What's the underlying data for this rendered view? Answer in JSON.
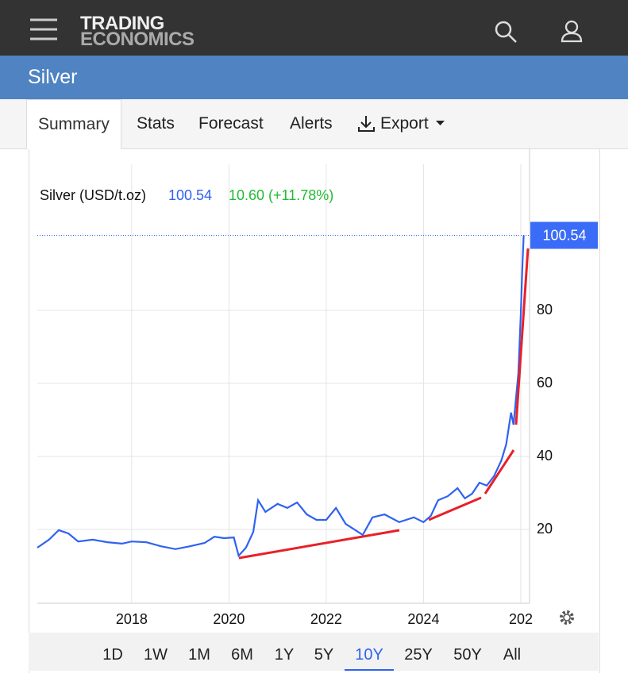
{
  "header": {
    "logo_line1": "TRADING",
    "logo_line2": "ECONOMICS"
  },
  "page_title": "Silver",
  "tabs": [
    "Summary",
    "Stats",
    "Forecast",
    "Alerts",
    "Export"
  ],
  "active_tab": 0,
  "chart_data": {
    "type": "line",
    "series_name": "Silver (USD/t.oz)",
    "last_price": 100.54,
    "change": "10.60 (+11.78%)",
    "color": "#2f62f0",
    "x": [
      2016.06,
      2016.3,
      2016.5,
      2016.7,
      2016.9,
      2017.2,
      2017.5,
      2017.8,
      2018.0,
      2018.3,
      2018.6,
      2018.9,
      2019.2,
      2019.5,
      2019.7,
      2019.9,
      2020.1,
      2020.2,
      2020.35,
      2020.5,
      2020.6,
      2020.75,
      2021.0,
      2021.2,
      2021.4,
      2021.6,
      2021.8,
      2022.0,
      2022.2,
      2022.4,
      2022.6,
      2022.75,
      2022.95,
      2023.2,
      2023.5,
      2023.8,
      2024.0,
      2024.15,
      2024.3,
      2024.5,
      2024.7,
      2024.85,
      2025.0,
      2025.15,
      2025.3,
      2025.45,
      2025.6,
      2025.7,
      2025.8,
      2025.85,
      2025.95,
      2026.0,
      2026.03,
      2026.06
    ],
    "values": [
      15.0,
      17.2,
      19.8,
      18.9,
      16.7,
      17.2,
      16.5,
      16.1,
      16.7,
      16.5,
      15.4,
      14.6,
      15.4,
      16.3,
      18.0,
      17.6,
      17.8,
      12.8,
      15.0,
      19.3,
      28.0,
      24.8,
      27.0,
      25.9,
      27.4,
      24.1,
      22.6,
      22.6,
      25.9,
      21.5,
      19.8,
      18.5,
      23.3,
      24.1,
      22.0,
      23.3,
      22.0,
      23.7,
      28.0,
      29.1,
      31.3,
      28.5,
      29.8,
      32.8,
      32.0,
      34.6,
      38.9,
      43.3,
      52.0,
      48.7,
      62.8,
      79.1,
      91.1,
      100.54
    ],
    "xlim": [
      2016.06,
      2026.18
    ],
    "ylim": [
      0,
      120
    ],
    "xticks": [
      2018,
      2020,
      2022,
      2024,
      {
        "value": 2026,
        "label": "202"
      }
    ],
    "yticks": [
      20,
      40,
      60,
      80
    ],
    "grid": true
  },
  "ranges": [
    "1D",
    "1W",
    "1M",
    "6M",
    "1Y",
    "5Y",
    "10Y",
    "25Y",
    "50Y",
    "All"
  ],
  "active_range": 6
}
